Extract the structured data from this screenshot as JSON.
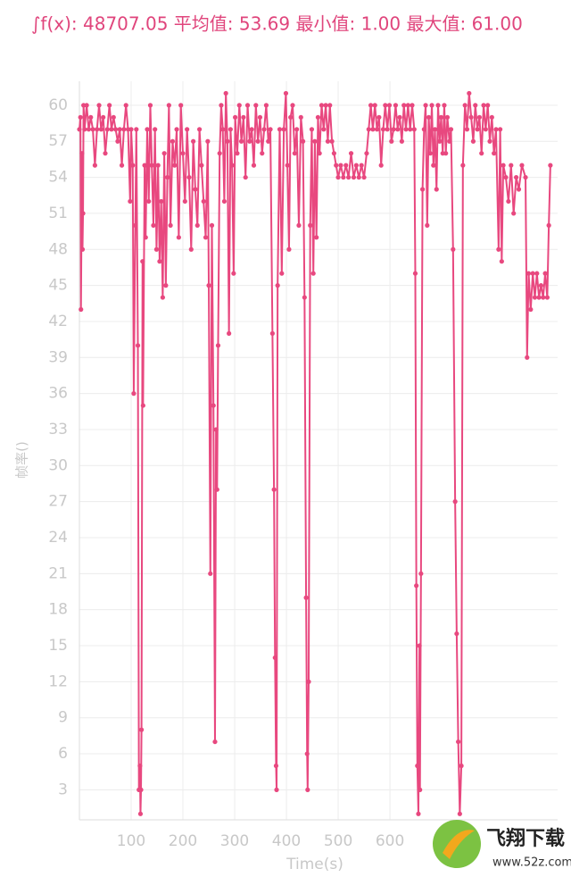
{
  "chart_data": {
    "type": "line",
    "title": "∫f(x): 48707.05 平均值: 53.69 最小值: 1.00 最大值: 61.00",
    "x_label": "Time(s)",
    "y_label": "帧率()",
    "watermark": {
      "brand": "飞翔下载",
      "url": "www.52z.com"
    },
    "grid": true,
    "xlim": [
      0,
      924
    ],
    "ylim": [
      0.5,
      62
    ],
    "xticks": [
      100,
      200,
      300,
      400,
      500,
      600
    ],
    "yticks": [
      3,
      6,
      9,
      12,
      15,
      18,
      21,
      24,
      27,
      30,
      33,
      36,
      39,
      42,
      45,
      48,
      51,
      54,
      57,
      60
    ],
    "x": [
      0,
      2,
      3,
      5,
      6,
      7,
      8,
      10,
      14,
      18,
      22,
      26,
      30,
      34,
      38,
      42,
      46,
      50,
      54,
      58,
      62,
      66,
      70,
      74,
      78,
      82,
      86,
      90,
      94,
      98,
      100,
      103,
      105,
      108,
      110,
      113,
      115,
      117,
      118,
      119,
      120,
      122,
      123,
      126,
      128,
      131,
      134,
      137,
      140,
      143,
      146,
      149,
      152,
      155,
      158,
      161,
      164,
      167,
      170,
      173,
      176,
      180,
      184,
      188,
      192,
      196,
      200,
      204,
      208,
      212,
      216,
      220,
      224,
      228,
      232,
      236,
      240,
      244,
      248,
      250,
      253,
      256,
      259,
      262,
      264,
      266,
      268,
      271,
      274,
      277,
      280,
      283,
      286,
      289,
      292,
      295,
      298,
      301,
      305,
      309,
      313,
      317,
      321,
      325,
      329,
      333,
      337,
      341,
      345,
      349,
      353,
      357,
      361,
      365,
      369,
      373,
      376,
      378,
      380,
      381,
      383,
      387,
      391,
      395,
      399,
      402,
      405,
      408,
      412,
      416,
      420,
      424,
      428,
      432,
      435,
      438,
      440,
      441,
      443,
      446,
      449,
      452,
      455,
      458,
      461,
      464,
      468,
      472,
      476,
      480,
      484,
      488,
      492,
      496,
      500,
      505,
      510,
      515,
      520,
      525,
      530,
      535,
      540,
      545,
      550,
      555,
      559,
      563,
      567,
      571,
      575,
      579,
      583,
      587,
      591,
      595,
      599,
      603,
      607,
      611,
      615,
      619,
      623,
      627,
      631,
      635,
      639,
      643,
      647,
      649,
      651,
      653,
      655,
      657,
      658,
      660,
      663,
      666,
      669,
      672,
      675,
      678,
      681,
      684,
      687,
      690,
      693,
      696,
      699,
      702,
      705,
      708,
      711,
      715,
      718,
      722,
      726,
      729,
      732,
      735,
      738,
      741,
      745,
      749,
      753,
      757,
      761,
      765,
      769,
      773,
      777,
      781,
      785,
      789,
      793,
      797,
      801,
      805,
      810,
      813,
      816,
      819,
      824,
      829,
      834,
      839,
      844,
      849,
      855,
      862,
      865,
      868,
      872,
      876,
      880,
      884,
      888,
      892,
      896,
      900,
      904,
      907,
      910
    ],
    "series": [
      {
        "color": "#e8487f",
        "values": [
          58,
          59,
          43,
          56,
          48,
          51,
          60,
          58,
          60,
          58,
          59,
          58,
          55,
          58,
          60,
          58,
          59,
          56,
          58,
          60,
          58,
          59,
          58,
          57,
          58,
          55,
          58,
          60,
          58,
          52,
          58,
          55,
          36,
          50,
          58,
          40,
          3,
          5,
          1,
          3,
          8,
          47,
          35,
          55,
          49,
          58,
          52,
          60,
          55,
          50,
          58,
          48,
          55,
          47,
          52,
          44,
          56,
          45,
          54,
          60,
          50,
          57,
          55,
          58,
          49,
          60,
          56,
          52,
          58,
          54,
          48,
          57,
          53,
          50,
          58,
          55,
          52,
          49,
          57,
          45,
          21,
          50,
          35,
          7,
          33,
          28,
          40,
          56,
          60,
          58,
          52,
          61,
          57,
          41,
          58,
          55,
          46,
          59,
          56,
          60,
          57,
          59,
          54,
          60,
          57,
          58,
          55,
          60,
          57,
          59,
          56,
          58,
          60,
          57,
          58,
          41,
          28,
          14,
          5,
          3,
          45,
          58,
          46,
          58,
          61,
          55,
          48,
          59,
          60,
          56,
          58,
          50,
          59,
          57,
          44,
          19,
          6,
          3,
          12,
          50,
          58,
          46,
          57,
          49,
          59,
          56,
          60,
          58,
          60,
          57,
          60,
          57,
          56,
          55,
          54,
          55,
          54,
          55,
          54,
          56,
          54,
          55,
          54,
          55,
          54,
          56,
          58,
          60,
          58,
          60,
          58,
          59,
          55,
          58,
          60,
          58,
          60,
          57,
          58,
          60,
          58,
          59,
          57,
          60,
          58,
          60,
          58,
          60,
          58,
          46,
          20,
          5,
          1,
          15,
          3,
          21,
          53,
          58,
          60,
          50,
          59,
          56,
          60,
          55,
          58,
          53,
          60,
          57,
          59,
          56,
          60,
          56,
          59,
          57,
          58,
          48,
          27,
          16,
          7,
          1,
          5,
          55,
          60,
          58,
          61,
          59,
          57,
          60,
          58,
          59,
          56,
          60,
          58,
          60,
          57,
          59,
          56,
          58,
          48,
          58,
          47,
          55,
          54,
          52,
          55,
          51,
          54,
          53,
          55,
          54,
          39,
          46,
          43,
          46,
          44,
          46,
          44,
          45,
          44,
          46,
          44,
          50,
          55
        ]
      }
    ]
  }
}
